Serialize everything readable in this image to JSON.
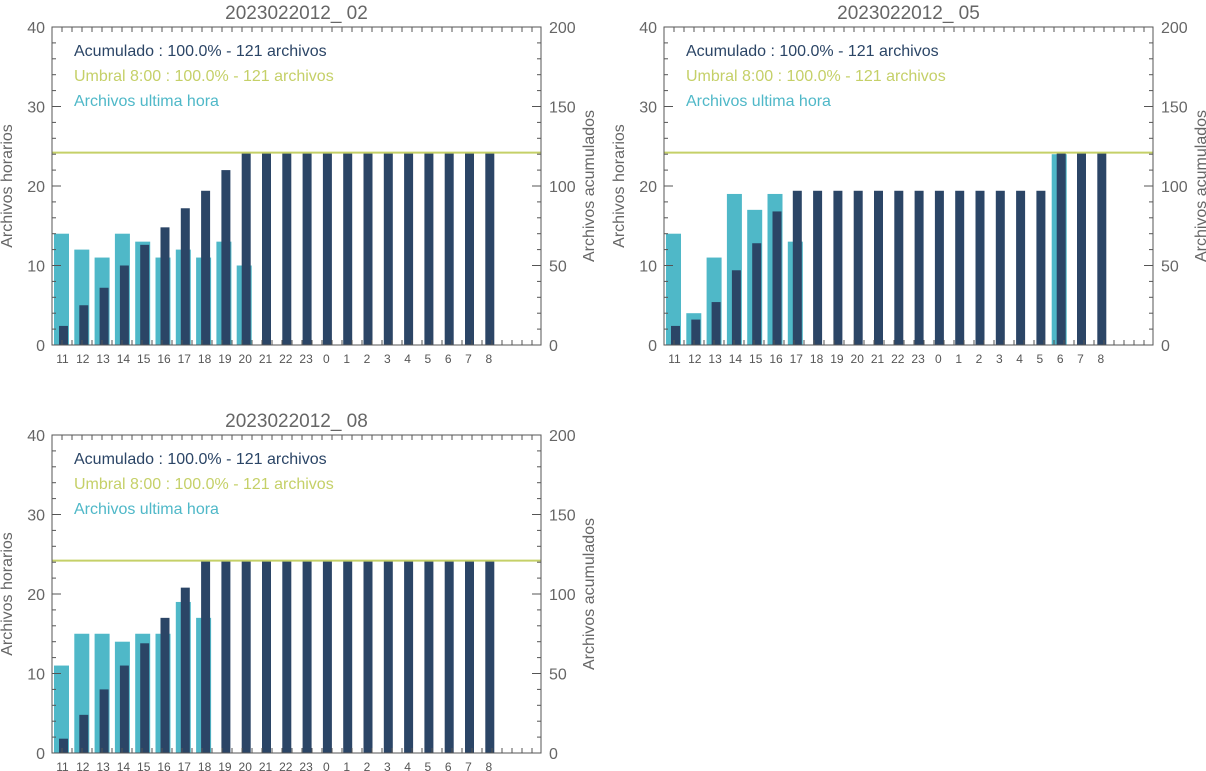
{
  "colors": {
    "hourly": "#4fb8c8",
    "cumulative": "#2b4566",
    "threshold": "#c5d068",
    "axis": "#555555"
  },
  "chart_data": [
    {
      "type": "bar",
      "title": "2023022012_ 02",
      "ylabel_left": "Archivos horarios",
      "ylabel_right": "Archivos acumulados",
      "ylim_left": [
        0,
        40
      ],
      "ylim_right": [
        0,
        200
      ],
      "yticks_left": [
        "0",
        "10",
        "20",
        "30",
        "40"
      ],
      "yticks_right": [
        "0",
        "50",
        "100",
        "150",
        "200"
      ],
      "categories": [
        "11",
        "12",
        "13",
        "14",
        "15",
        "16",
        "17",
        "18",
        "19",
        "20",
        "21",
        "22",
        "23",
        "0",
        "1",
        "2",
        "3",
        "4",
        "5",
        "6",
        "7",
        "8"
      ],
      "legend": [
        {
          "text": "Acumulado : 100.0% - 121 archivos",
          "color_key": "cumulative"
        },
        {
          "text": "Umbral 8:00 : 100.0% - 121 archivos",
          "color_key": "threshold"
        },
        {
          "text": "Archivos ultima hora",
          "color_key": "hourly"
        }
      ],
      "threshold": 121,
      "series": [
        {
          "name": "Archivos ultima hora",
          "axis": "left",
          "values": [
            14,
            12,
            11,
            14,
            13,
            11,
            12,
            11,
            13,
            10,
            0,
            0,
            0,
            0,
            0,
            0,
            0,
            0,
            0,
            0,
            0,
            0
          ]
        },
        {
          "name": "Acumulado",
          "axis": "right",
          "values": [
            12,
            25,
            36,
            50,
            63,
            74,
            86,
            97,
            110,
            121,
            121,
            121,
            121,
            121,
            121,
            121,
            121,
            121,
            121,
            121,
            121,
            121
          ]
        }
      ]
    },
    {
      "type": "bar",
      "title": "2023022012_ 05",
      "ylabel_left": "Archivos horarios",
      "ylabel_right": "Archivos acumulados",
      "ylim_left": [
        0,
        40
      ],
      "ylim_right": [
        0,
        200
      ],
      "yticks_left": [
        "0",
        "10",
        "20",
        "30",
        "40"
      ],
      "yticks_right": [
        "0",
        "50",
        "100",
        "150",
        "200"
      ],
      "categories": [
        "11",
        "12",
        "13",
        "14",
        "15",
        "16",
        "17",
        "18",
        "19",
        "20",
        "21",
        "22",
        "23",
        "0",
        "1",
        "2",
        "3",
        "4",
        "5",
        "6",
        "7",
        "8"
      ],
      "legend": [
        {
          "text": "Acumulado : 100.0% - 121 archivos",
          "color_key": "cumulative"
        },
        {
          "text": "Umbral 8:00 : 100.0% - 121 archivos",
          "color_key": "threshold"
        },
        {
          "text": "Archivos ultima hora",
          "color_key": "hourly"
        }
      ],
      "threshold": 121,
      "series": [
        {
          "name": "Archivos ultima hora",
          "axis": "left",
          "values": [
            14,
            4,
            11,
            19,
            17,
            19,
            13,
            0,
            0,
            0,
            0,
            0,
            0,
            0,
            0,
            0,
            0,
            0,
            0,
            24,
            0,
            0
          ]
        },
        {
          "name": "Acumulado",
          "axis": "right",
          "values": [
            12,
            16,
            27,
            47,
            64,
            84,
            97,
            97,
            97,
            97,
            97,
            97,
            97,
            97,
            97,
            97,
            97,
            97,
            97,
            121,
            121,
            121
          ]
        }
      ]
    },
    {
      "type": "bar",
      "title": "2023022012_ 08",
      "ylabel_left": "Archivos horarios",
      "ylabel_right": "Archivos acumulados",
      "ylim_left": [
        0,
        40
      ],
      "ylim_right": [
        0,
        200
      ],
      "yticks_left": [
        "0",
        "10",
        "20",
        "30",
        "40"
      ],
      "yticks_right": [
        "0",
        "50",
        "100",
        "150",
        "200"
      ],
      "categories": [
        "11",
        "12",
        "13",
        "14",
        "15",
        "16",
        "17",
        "18",
        "19",
        "20",
        "21",
        "22",
        "23",
        "0",
        "1",
        "2",
        "3",
        "4",
        "5",
        "6",
        "7",
        "8"
      ],
      "legend": [
        {
          "text": "Acumulado : 100.0% - 121 archivos",
          "color_key": "cumulative"
        },
        {
          "text": "Umbral 8:00 : 100.0% - 121 archivos",
          "color_key": "threshold"
        },
        {
          "text": "Archivos ultima hora",
          "color_key": "hourly"
        }
      ],
      "threshold": 121,
      "series": [
        {
          "name": "Archivos ultima hora",
          "axis": "left",
          "values": [
            11,
            15,
            15,
            14,
            15,
            15,
            19,
            17,
            0,
            0,
            0,
            0,
            0,
            0,
            0,
            0,
            0,
            0,
            0,
            0,
            0,
            0
          ]
        },
        {
          "name": "Acumulado",
          "axis": "right",
          "values": [
            9,
            24,
            40,
            55,
            69,
            85,
            104,
            121,
            121,
            121,
            121,
            121,
            121,
            121,
            121,
            121,
            121,
            121,
            121,
            121,
            121,
            121
          ]
        }
      ]
    }
  ]
}
